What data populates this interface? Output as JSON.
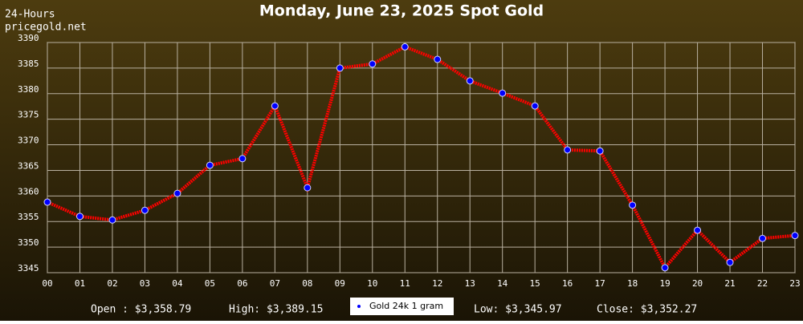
{
  "chart_data": {
    "type": "line",
    "title": "Monday, June 23, 2025 Spot Gold",
    "subtitle": "24-Hours",
    "source": "pricegold.net",
    "categories": [
      "00",
      "01",
      "02",
      "03",
      "04",
      "05",
      "06",
      "07",
      "08",
      "09",
      "10",
      "11",
      "12",
      "13",
      "14",
      "15",
      "16",
      "17",
      "18",
      "19",
      "20",
      "21",
      "22",
      "23"
    ],
    "series": [
      {
        "name": "Gold 24k 1 gram",
        "color": "#ff0000",
        "marker_color": "#0000ff",
        "values": [
          3358.79,
          3356.0,
          3355.3,
          3357.2,
          3360.5,
          3366.0,
          3367.3,
          3377.6,
          3361.6,
          3385.0,
          3385.8,
          3389.15,
          3386.7,
          3382.5,
          3380.1,
          3377.6,
          3369.0,
          3368.8,
          3358.2,
          3345.97,
          3353.3,
          3347.0,
          3351.7,
          3352.27
        ]
      }
    ],
    "ylim": [
      3345,
      3390
    ],
    "yticks": [
      3345,
      3350,
      3355,
      3360,
      3365,
      3370,
      3375,
      3380,
      3385,
      3390
    ],
    "grid": true,
    "annotations": [
      "Open : $3,358.79",
      "High: $3,389.15",
      "Low: $3,345.97",
      "Close: $3,352.27"
    ]
  }
}
